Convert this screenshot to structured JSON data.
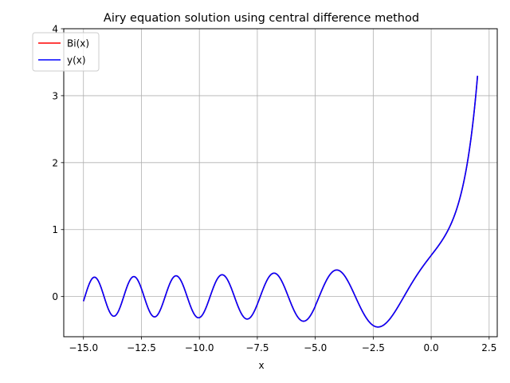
{
  "chart_data": {
    "type": "line",
    "title": "Airy equation solution using central difference method",
    "xlabel": "x",
    "ylabel": "",
    "xlim": [
      -15.85,
      2.85
    ],
    "ylim": [
      -0.6,
      4.0
    ],
    "x_ticks": [
      -15.0,
      -12.5,
      -10.0,
      -7.5,
      -5.0,
      -2.5,
      0.0,
      2.5
    ],
    "x_tick_labels": [
      "−15.0",
      "−12.5",
      "−10.0",
      "−7.5",
      "−5.0",
      "−2.5",
      "0.0",
      "2.5"
    ],
    "y_ticks": [
      0,
      1,
      2,
      3,
      4
    ],
    "y_tick_labels": [
      "0",
      "1",
      "2",
      "3",
      "4"
    ],
    "grid": true,
    "legend_position": "top-left",
    "x_range": [
      -15.0,
      2.0
    ],
    "series": [
      {
        "name": "Bi(x)",
        "color": "#ff0000",
        "function": "airy_bi"
      },
      {
        "name": "y(x)",
        "color": "#0000ff",
        "function": "airy_bi"
      }
    ]
  }
}
